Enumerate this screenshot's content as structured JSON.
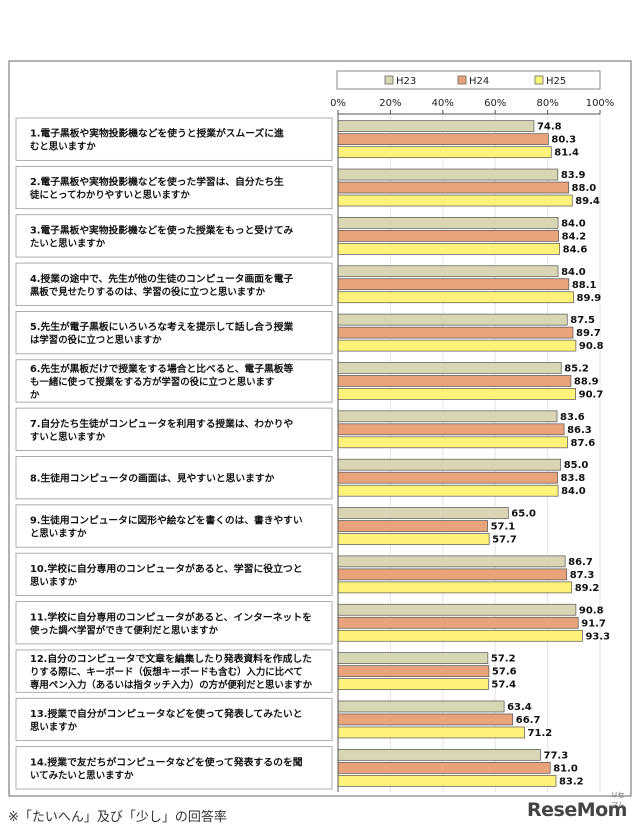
{
  "chart_data": {
    "type": "bar",
    "orientation": "horizontal",
    "xlim": [
      0,
      100
    ],
    "x_ticks": [
      "0%",
      "20%",
      "40%",
      "60%",
      "80%",
      "100%"
    ],
    "legend_position": "top-right",
    "series": [
      {
        "name": "H23",
        "color": "#d9d6b3"
      },
      {
        "name": "H24",
        "color": "#e8a37a"
      },
      {
        "name": "H25",
        "color": "#fff27a"
      }
    ],
    "categories": [
      {
        "lines": [
          "1.電子黒板や実物投影機などを使うと授業がスムーズに進",
          "むと思いますか"
        ],
        "values": [
          74.8,
          80.3,
          81.4
        ]
      },
      {
        "lines": [
          "2.電子黒板や実物投影機などを使った学習は、自分たち生",
          "徒にとってわかりやすいと思いますか"
        ],
        "values": [
          83.9,
          88.0,
          89.4
        ]
      },
      {
        "lines": [
          "3.電子黒板や実物投影機などを使った授業をもっと受けてみ",
          "たいと思いますか"
        ],
        "values": [
          84.0,
          84.2,
          84.6
        ]
      },
      {
        "lines": [
          "4.授業の途中で、先生が他の生徒のコンピュータ画面を電子",
          "黒板で見せたりするのは、学習の役に立つと思いますか"
        ],
        "values": [
          84.0,
          88.1,
          89.9
        ]
      },
      {
        "lines": [
          "5.先生が電子黒板にいろいろな考えを提示して話し合う授業",
          "は学習の役に立つと思いますか"
        ],
        "values": [
          87.5,
          89.7,
          90.8
        ]
      },
      {
        "lines": [
          "6.先生が黒板だけで授業をする場合と比べると、電子黒板等",
          "も一緒に使って授業をする方が学習の役に立つと思います",
          "か"
        ],
        "values": [
          85.2,
          88.9,
          90.7
        ]
      },
      {
        "lines": [
          "7.自分たち生徒がコンピュータを利用する授業は、わかりや",
          "すいと思いますか"
        ],
        "values": [
          83.6,
          86.3,
          87.6
        ]
      },
      {
        "lines": [
          "8.生徒用コンピュータの画面は、見やすいと思いますか"
        ],
        "values": [
          85.0,
          83.8,
          84.0
        ]
      },
      {
        "lines": [
          "9.生徒用コンピュータに図形や絵などを書くのは、書きやすい",
          "と思いますか"
        ],
        "values": [
          65.0,
          57.1,
          57.7
        ]
      },
      {
        "lines": [
          "10.学校に自分専用のコンピュータがあると、学習に役立つと",
          "思いますか"
        ],
        "values": [
          86.7,
          87.3,
          89.2
        ]
      },
      {
        "lines": [
          "11.学校に自分専用のコンピュータがあると、インターネットを",
          "使った調べ学習ができて便利だと思いますか"
        ],
        "values": [
          90.8,
          91.7,
          93.3
        ]
      },
      {
        "lines": [
          "12.自分のコンピュータで文章を編集したり発表資料を作成した",
          "りする際に、キーボード（仮想キーボードも含む）入力に比べて",
          "専用ペン入力（あるいは指タッチ入力）の方が便利だと思いますか"
        ],
        "values": [
          57.2,
          57.6,
          57.4
        ]
      },
      {
        "lines": [
          "13.授業で自分がコンピュータなどを使って発表してみたいと",
          "思いますか"
        ],
        "values": [
          63.4,
          66.7,
          71.2
        ]
      },
      {
        "lines": [
          "14.授業で友だちがコンピュータなどを使って発表するのを聞",
          "いてみたいと思いますか"
        ],
        "values": [
          77.3,
          81.0,
          83.2
        ]
      }
    ]
  },
  "footnote": "※「たいへん」及び「少し」の回答率",
  "logo": {
    "text": "ReseMom",
    "kana": "リセマム"
  }
}
